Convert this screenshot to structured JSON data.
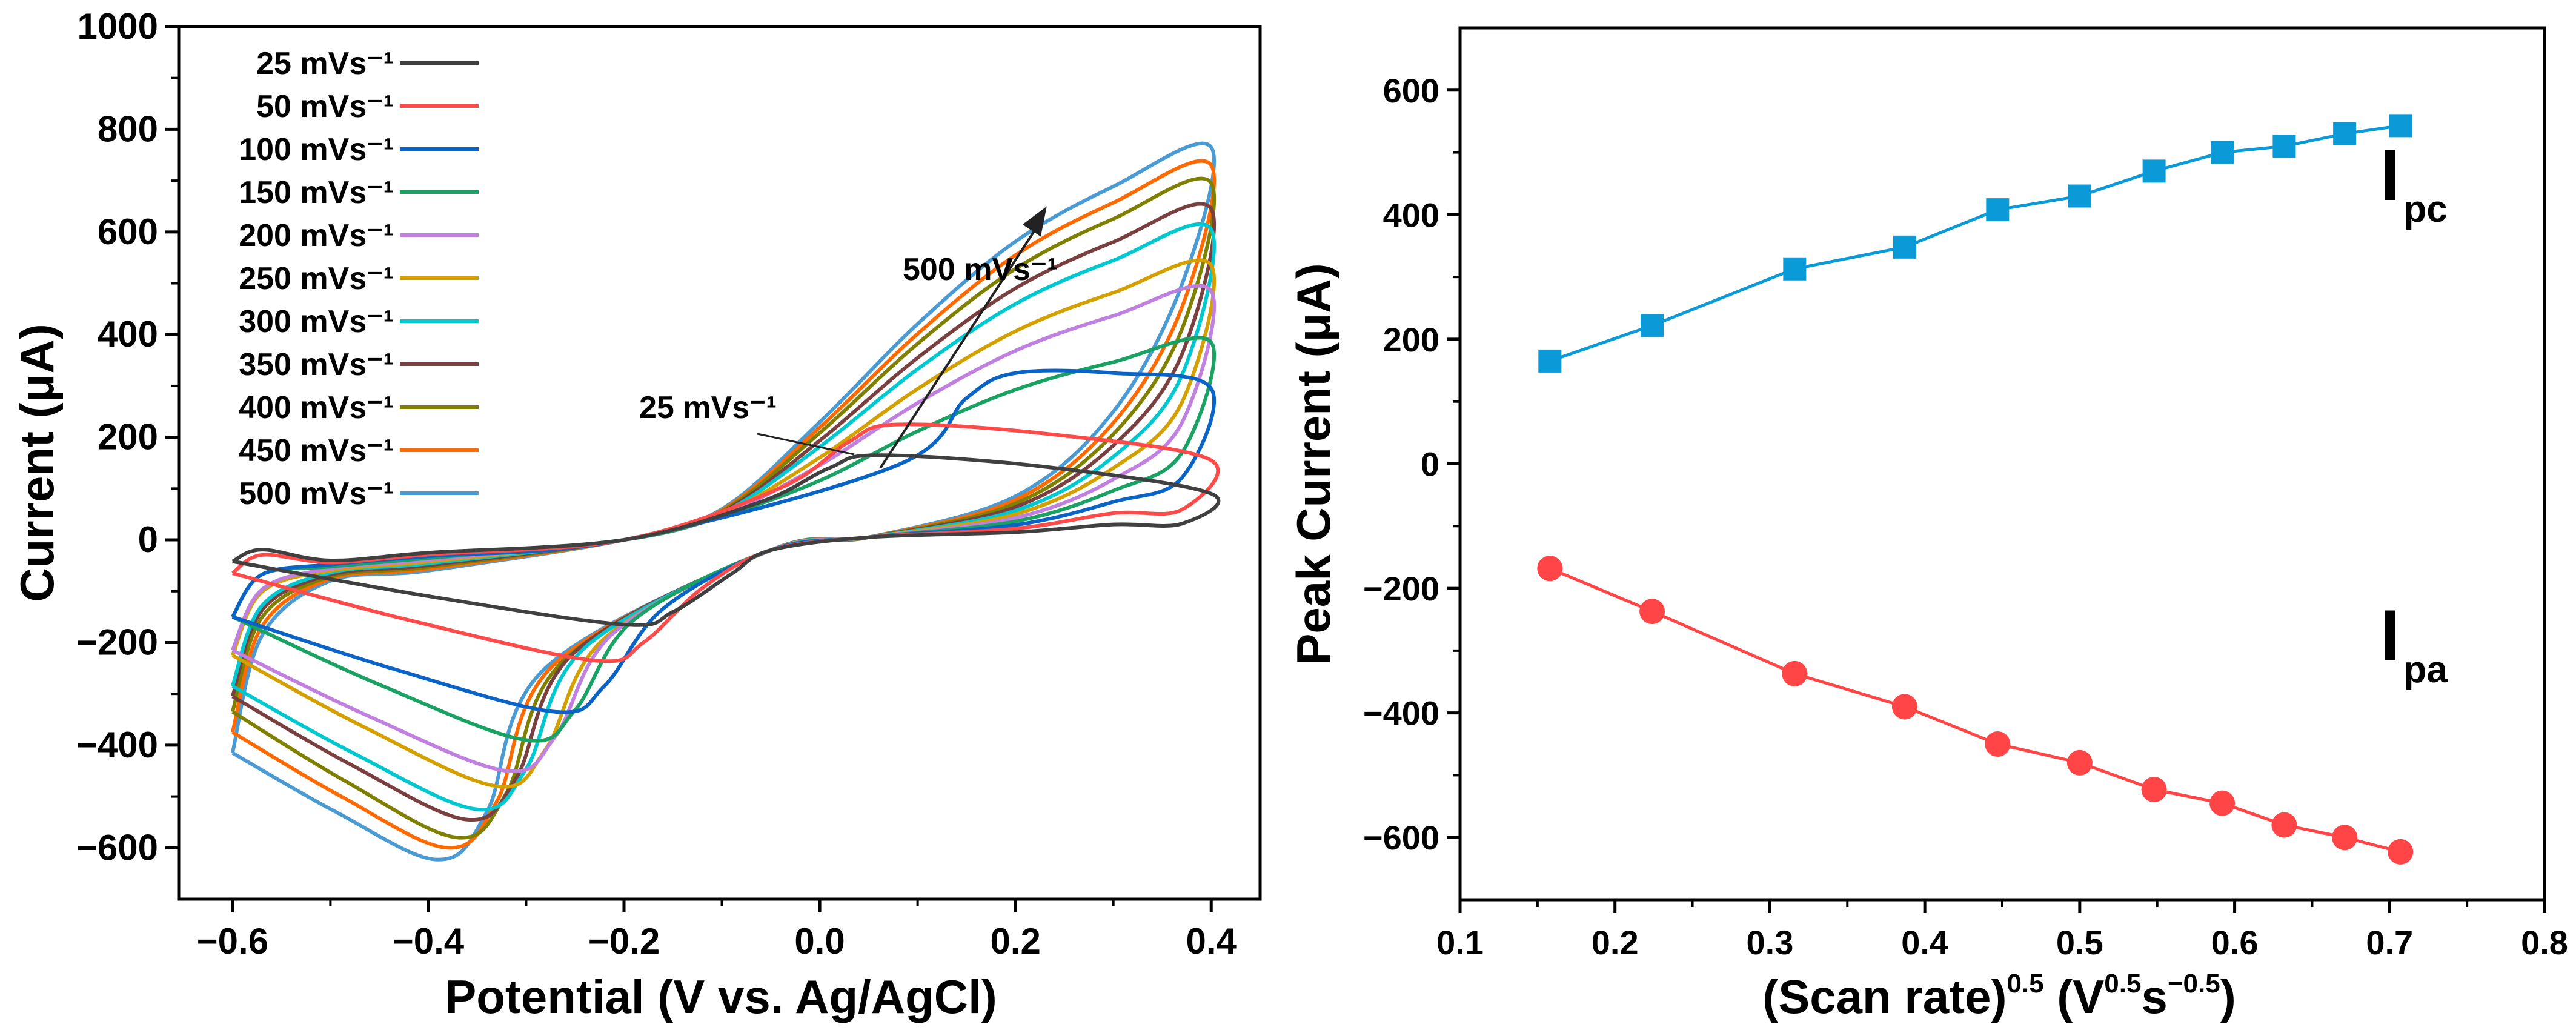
{
  "chart_data": [
    {
      "type": "line",
      "title": "",
      "xlabel": "Potential (V vs. Ag/AgCl)",
      "ylabel": "Current (μA)",
      "xlim": [
        -0.655,
        0.45
      ],
      "ylim": [
        -700,
        1000
      ],
      "xticks": [
        -0.6,
        -0.4,
        -0.2,
        0.0,
        0.2,
        0.4
      ],
      "xtick_labels": [
        "−0.6",
        "−0.4",
        "−0.2",
        "0.0",
        "0.2",
        "0.4"
      ],
      "yticks": [
        -600,
        -400,
        -200,
        0,
        200,
        400,
        600,
        800,
        1000
      ],
      "ytick_labels": [
        "−600",
        "−400",
        "−200",
        "0",
        "200",
        "400",
        "600",
        "800",
        "1000"
      ],
      "grid": false,
      "legend_placement": "top-left",
      "annotations": {
        "low": "25 mVs⁻¹",
        "high": "500 mVs⁻¹"
      },
      "series": [
        {
          "name": "25 mVs⁻¹",
          "color": "#404040",
          "anodic_peak": [
            0.06,
            165
          ],
          "cathodic_peak": [
            -0.2,
            -165
          ],
          "i_end_positive": 90,
          "i_end_negative": -42
        },
        {
          "name": "50 mVs⁻¹",
          "color": "#ff4a4a",
          "anodic_peak": [
            0.08,
            225
          ],
          "cathodic_peak": [
            -0.23,
            -235
          ],
          "i_end_positive": 155,
          "i_end_negative": -65
        },
        {
          "name": "100 mVs⁻¹",
          "color": "#0a64c8",
          "anodic_peak": [
            0.2,
            325
          ],
          "cathodic_peak": [
            -0.27,
            -335
          ],
          "i_end_positive": 295,
          "i_end_negative": -150
        },
        {
          "name": "150 mVs⁻¹",
          "color": "#1aa264",
          "anodic_peak": [
            0.4,
            385
          ],
          "cathodic_peak": [
            -0.3,
            -390
          ],
          "i_end_positive": 385,
          "i_end_negative": -150
        },
        {
          "name": "200 mVs⁻¹",
          "color": "#c080e0",
          "anodic_peak": [
            0.4,
            485
          ],
          "cathodic_peak": [
            -0.32,
            -450
          ],
          "i_end_positive": 485,
          "i_end_negative": -215
        },
        {
          "name": "250 mVs⁻¹",
          "color": "#d4a000",
          "anodic_peak": [
            0.4,
            535
          ],
          "cathodic_peak": [
            -0.33,
            -480
          ],
          "i_end_positive": 535,
          "i_end_negative": -225
        },
        {
          "name": "300 mVs⁻¹",
          "color": "#00c8d0",
          "anodic_peak": [
            0.4,
            605
          ],
          "cathodic_peak": [
            -0.35,
            -525
          ],
          "i_end_positive": 605,
          "i_end_negative": -285
        },
        {
          "name": "350 mVs⁻¹",
          "color": "#7a4040",
          "anodic_peak": [
            0.4,
            645
          ],
          "cathodic_peak": [
            -0.36,
            -545
          ],
          "i_end_positive": 645,
          "i_end_negative": -305
        },
        {
          "name": "400 mVs⁻¹",
          "color": "#808000",
          "anodic_peak": [
            0.4,
            695
          ],
          "cathodic_peak": [
            -0.37,
            -580
          ],
          "i_end_positive": 695,
          "i_end_negative": -335
        },
        {
          "name": "450 mVs⁻¹",
          "color": "#ff6a00",
          "anodic_peak": [
            0.4,
            730
          ],
          "cathodic_peak": [
            -0.38,
            -600
          ],
          "i_end_positive": 730,
          "i_end_negative": -375
        },
        {
          "name": "500 mVs⁻¹",
          "color": "#4a9ad4",
          "anodic_peak": [
            0.4,
            765
          ],
          "cathodic_peak": [
            -0.39,
            -623
          ],
          "i_end_positive": 765,
          "i_end_negative": -415
        }
      ]
    },
    {
      "type": "line",
      "title": "",
      "xlabel_parts": [
        "(Scan rate)",
        "0.5",
        " (V",
        "0.5",
        "s",
        "−0.5",
        ")"
      ],
      "ylabel": "Peak Current (μA)",
      "xlim": [
        0.1,
        0.8
      ],
      "ylim": [
        -700,
        700
      ],
      "xticks": [
        0.1,
        0.2,
        0.3,
        0.4,
        0.5,
        0.6,
        0.7,
        0.8
      ],
      "xtick_labels": [
        "0.1",
        "0.2",
        "0.3",
        "0.4",
        "0.5",
        "0.6",
        "0.7",
        "0.8"
      ],
      "yticks": [
        -600,
        -400,
        -200,
        0,
        200,
        400,
        600
      ],
      "ytick_labels": [
        "−600",
        "−400",
        "−200",
        "0",
        "200",
        "400",
        "600"
      ],
      "grid": false,
      "x": [
        0.158,
        0.224,
        0.316,
        0.387,
        0.447,
        0.5,
        0.548,
        0.592,
        0.632,
        0.671,
        0.707
      ],
      "series": [
        {
          "name": "Ipc",
          "label_main": "I",
          "label_sub": "pc",
          "color": "#0b9ad8",
          "marker": "square",
          "values": [
            165,
            222,
            313,
            348,
            408,
            430,
            470,
            500,
            510,
            530,
            543
          ]
        },
        {
          "name": "Ipa",
          "label_main": "I",
          "label_sub": "pa",
          "color": "#ff4545",
          "marker": "circle",
          "values": [
            -168,
            -237,
            -337,
            -390,
            -450,
            -480,
            -523,
            -545,
            -580,
            -600,
            -623
          ]
        }
      ]
    }
  ]
}
